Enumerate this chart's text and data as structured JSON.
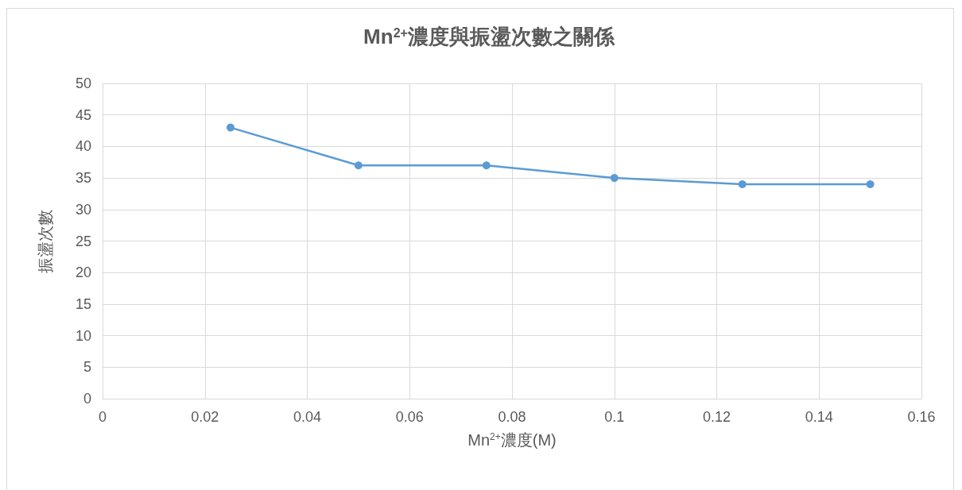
{
  "chart_data": {
    "type": "line",
    "title": "Mn$^{2+}$濃度與振盪次數之關係",
    "xlabel": "Mn$^{2+}$濃度(M)",
    "ylabel": "振盪次數",
    "x": [
      0.025,
      0.05,
      0.075,
      0.1,
      0.125,
      0.15
    ],
    "series": [
      {
        "color": "#5b9bd5",
        "values": [
          43,
          37,
          37,
          35,
          34,
          34
        ]
      }
    ],
    "xlim": [
      0,
      0.16
    ],
    "xticks": [
      0,
      0.02,
      0.04,
      0.06,
      0.08,
      0.1,
      0.12,
      0.14,
      0.16
    ],
    "ylim": [
      0,
      50
    ],
    "yticks": [
      0,
      5,
      10,
      15,
      20,
      25,
      30,
      35,
      40,
      45,
      50
    ],
    "grid": true,
    "marker": "circle",
    "line_style": "solid"
  }
}
